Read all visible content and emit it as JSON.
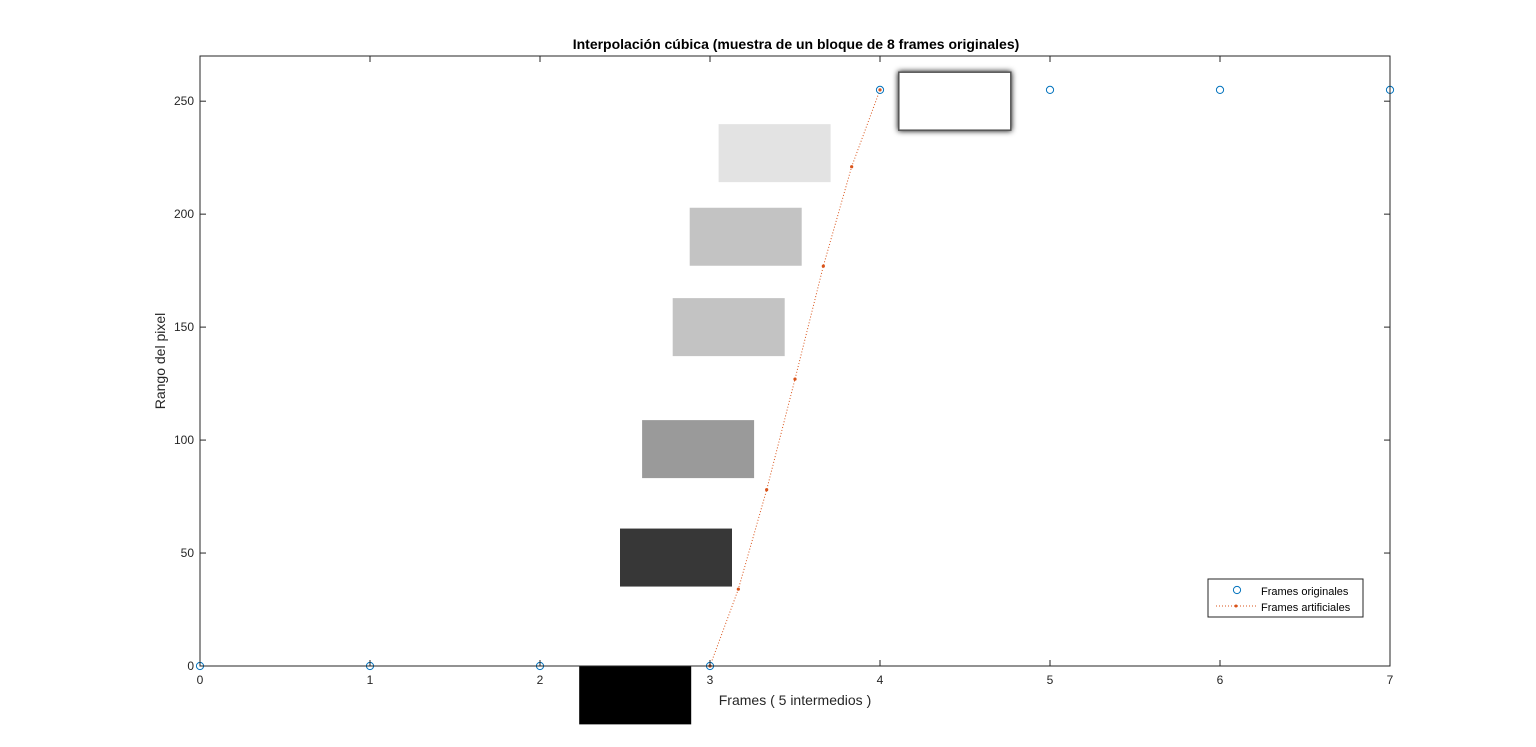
{
  "chart_data": {
    "type": "scatter",
    "title": "Interpolación cúbica (muestra de un bloque de 8 frames originales)",
    "xlabel": "Frames ( 5 intermedios )",
    "ylabel": "Rango del pixel",
    "xlim": [
      0,
      7
    ],
    "ylim": [
      0,
      270
    ],
    "xticks": [
      0,
      1,
      2,
      3,
      4,
      5,
      6,
      7
    ],
    "yticks": [
      0,
      50,
      100,
      150,
      200,
      250
    ],
    "grid": false,
    "legend_position": "bottom-right",
    "series": [
      {
        "name": "Frames originales",
        "marker": "circle",
        "color": "#0072BD",
        "x": [
          0,
          1,
          2,
          3,
          4,
          5,
          6,
          7
        ],
        "y": [
          0,
          0,
          0,
          0,
          255,
          255,
          255,
          255
        ]
      },
      {
        "name": "Frames artificiales",
        "marker": "dot",
        "line": "dotted",
        "color": "#D95319",
        "x": [
          3,
          3.1667,
          3.3333,
          3.5,
          3.6667,
          3.8333,
          4
        ],
        "y": [
          0,
          34,
          78,
          127,
          177,
          221,
          255
        ]
      }
    ],
    "frame_swatches": [
      {
        "x_center": 2.56,
        "y_center": -13,
        "gray": "#000000"
      },
      {
        "x_center": 2.8,
        "y_center": 48,
        "gray": "#373737"
      },
      {
        "x_center": 2.93,
        "y_center": 96,
        "gray": "#9a9a9a"
      },
      {
        "x_center": 3.11,
        "y_center": 150,
        "gray": "#c3c3c3"
      },
      {
        "x_center": 3.21,
        "y_center": 190,
        "gray": "#c3c3c3"
      },
      {
        "x_center": 3.38,
        "y_center": 227,
        "gray": "#e3e3e3"
      },
      {
        "x_center": 4.44,
        "y_center": 250,
        "gray": "#ffffff",
        "shadow": true
      }
    ]
  }
}
